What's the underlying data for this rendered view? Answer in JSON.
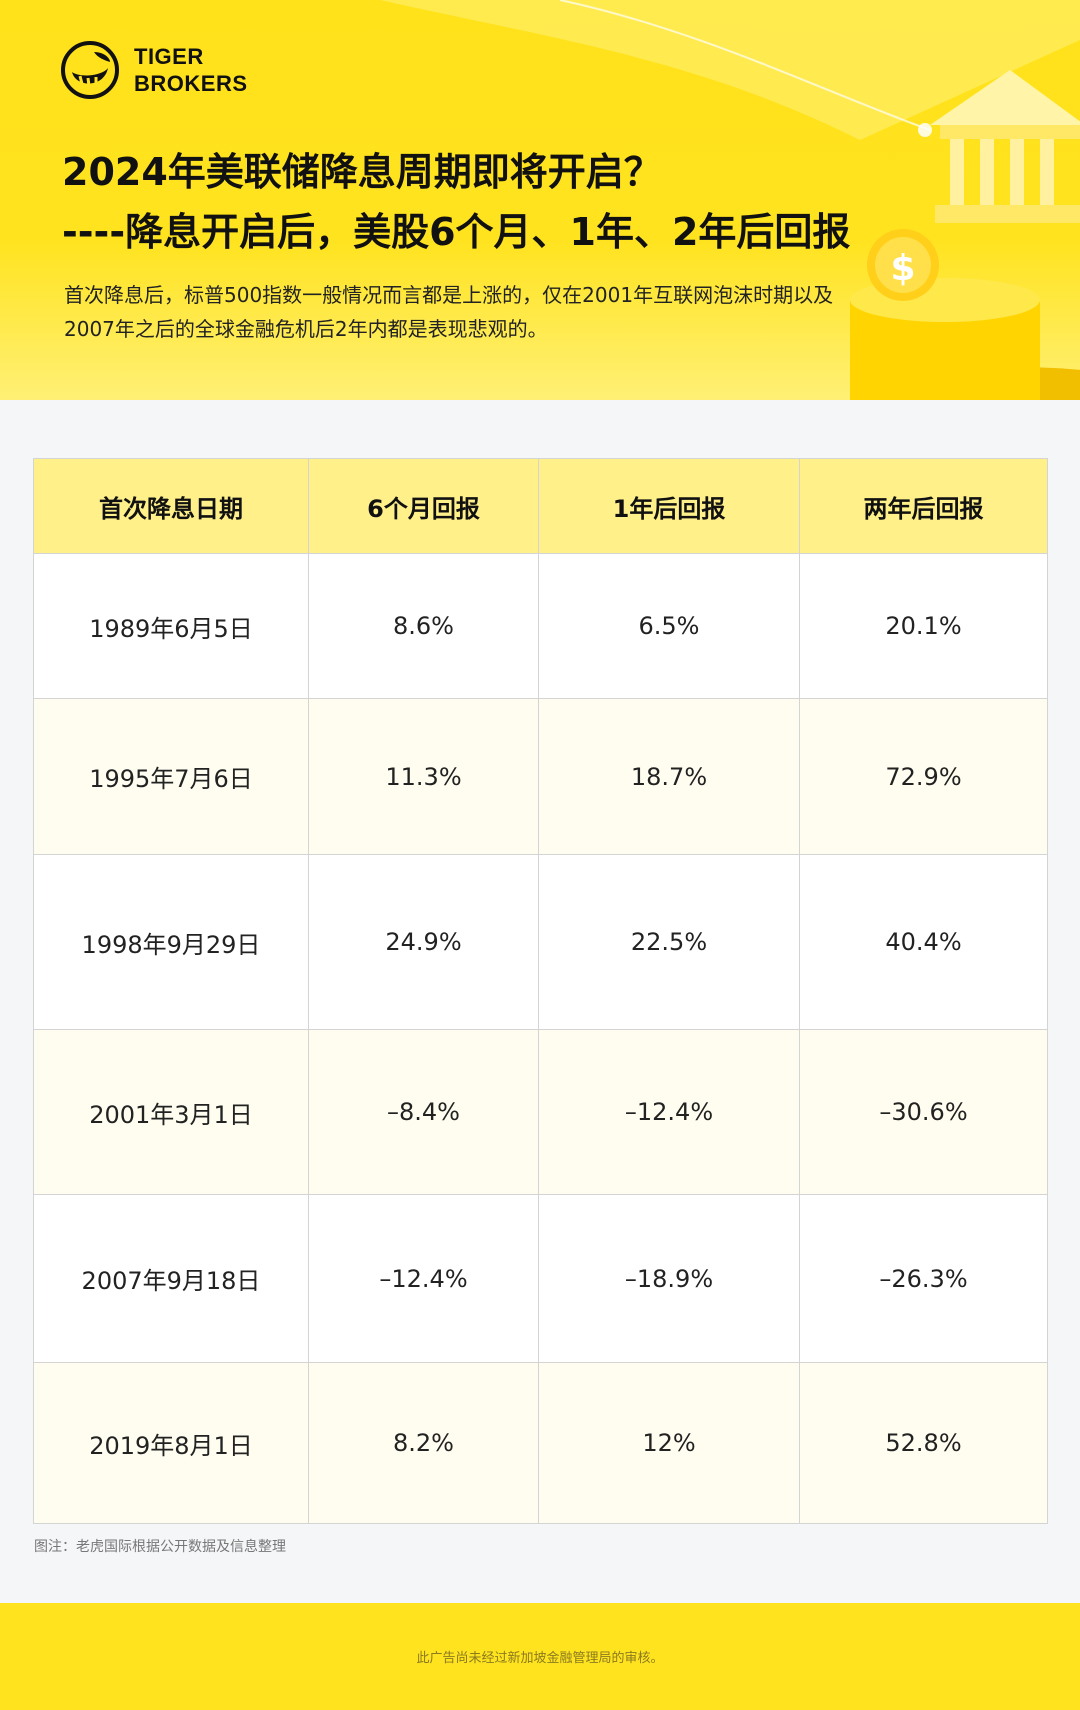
{
  "brand": {
    "logo_icon": "tiger-logo-icon",
    "line1": "TIGER",
    "line2": "BROKERS",
    "colors": {
      "yellow": "#ffe31f",
      "header_cell": "#fff08a",
      "text": "#111111"
    }
  },
  "hero": {
    "title_line1": "2024年美联储降息周期即将开启？",
    "title_line2": "----降息开启后，美股6个月、1年、2年后回报",
    "intro": "首次降息后，标普500指数一般情况而言都是上涨的，仅在2001年互联网泡沫时期以及2007年之后的全球金融危机后2年内都是表现悲观的。",
    "decor_icons": [
      "bank-building-icon",
      "dollar-coin-icon"
    ]
  },
  "table": {
    "headers": [
      "首次降息日期",
      "6个月回报",
      "1年后回报",
      "两年后回报"
    ],
    "rows": [
      [
        "1989年6月5日",
        "8.6%",
        "6.5%",
        "20.1%"
      ],
      [
        "1995年7月6日",
        "11.3%",
        "18.7%",
        "72.9%"
      ],
      [
        "1998年9月29日",
        "24.9%",
        "22.5%",
        "40.4%"
      ],
      [
        "2001年3月1日",
        "–8.4%",
        "–12.4%",
        "–30.6%"
      ],
      [
        "2007年9月18日",
        "–12.4%",
        "–18.9%",
        "–26.3%"
      ],
      [
        "2019年8月1日",
        "8.2%",
        "12%",
        "52.8%"
      ]
    ]
  },
  "note": "图注：老虎国际根据公开数据及信息整理",
  "footer": "此广告尚未经过新加坡金融管理局的审核。"
}
